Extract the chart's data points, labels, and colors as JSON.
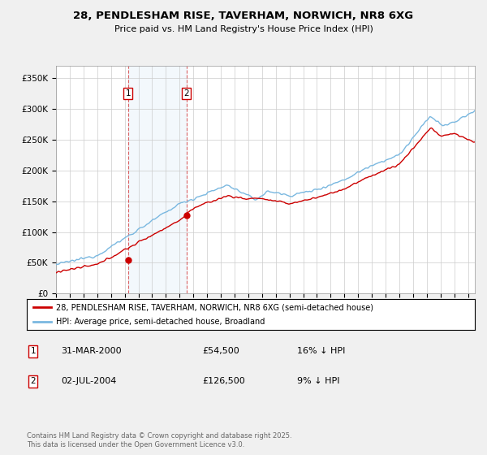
{
  "title": "28, PENDLESHAM RISE, TAVERHAM, NORWICH, NR8 6XG",
  "subtitle": "Price paid vs. HM Land Registry's House Price Index (HPI)",
  "ylabel_ticks": [
    "£0",
    "£50K",
    "£100K",
    "£150K",
    "£200K",
    "£250K",
    "£300K",
    "£350K"
  ],
  "ytick_vals": [
    0,
    50000,
    100000,
    150000,
    200000,
    250000,
    300000,
    350000
  ],
  "ylim": [
    0,
    370000
  ],
  "xlim_start": 1995.0,
  "xlim_end": 2025.5,
  "legend_line1": "28, PENDLESHAM RISE, TAVERHAM, NORWICH, NR8 6XG (semi-detached house)",
  "legend_line2": "HPI: Average price, semi-detached house, Broadland",
  "sale1_x": 2000.25,
  "sale1_y": 54500,
  "sale2_x": 2004.5,
  "sale2_y": 126500,
  "sale1_date": "31-MAR-2000",
  "sale1_price": "£54,500",
  "sale1_hpi": "16% ↓ HPI",
  "sale2_date": "02-JUL-2004",
  "sale2_price": "£126,500",
  "sale2_hpi": "9% ↓ HPI",
  "hpi_color": "#7ab8e0",
  "price_color": "#cc0000",
  "shade_color": "#daeaf8",
  "footer": "Contains HM Land Registry data © Crown copyright and database right 2025.\nThis data is licensed under the Open Government Licence v3.0.",
  "bg_color": "#f0f0f0",
  "plot_bg_color": "#ffffff"
}
